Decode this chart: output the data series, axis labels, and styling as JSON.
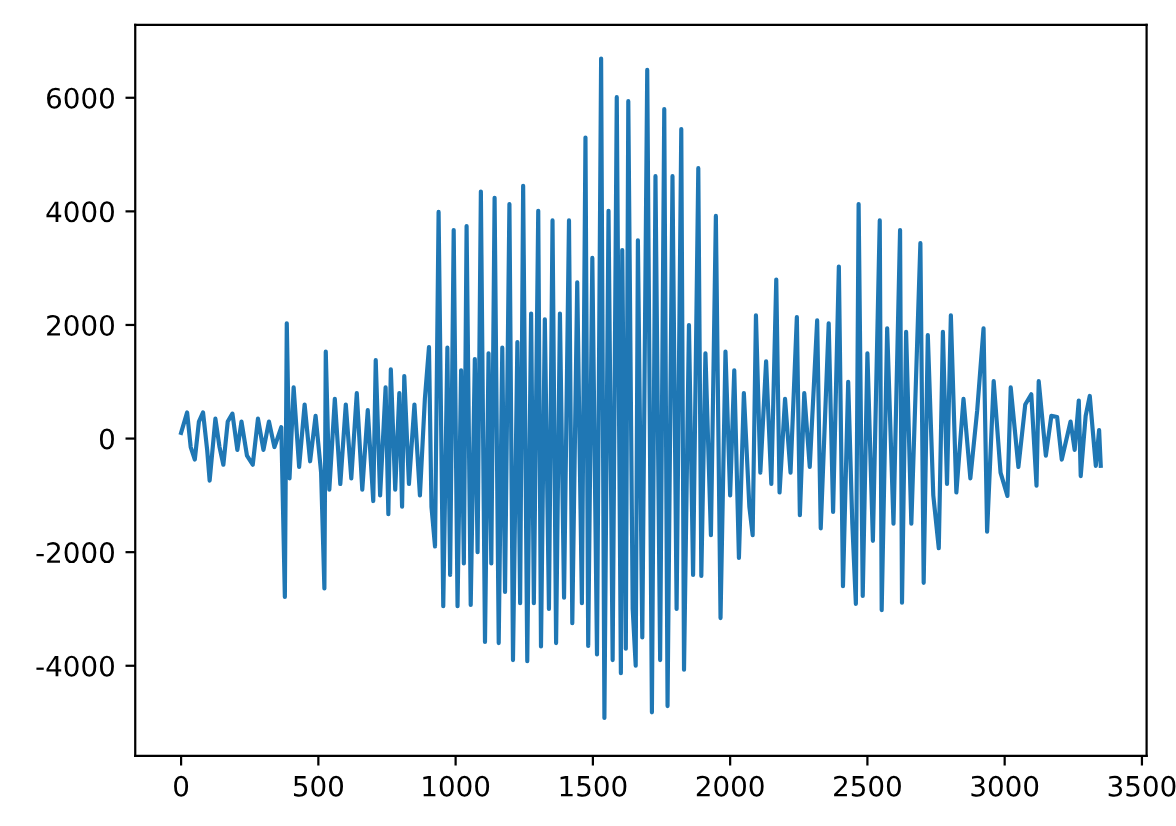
{
  "chart_data": {
    "type": "line",
    "x": [
      0,
      22,
      35,
      50,
      65,
      80,
      95,
      104,
      125,
      140,
      154,
      170,
      187,
      205,
      220,
      240,
      261,
      280,
      300,
      320,
      340,
      365,
      378,
      385,
      395,
      410,
      430,
      450,
      470,
      490,
      510,
      522,
      527,
      540,
      560,
      580,
      600,
      620,
      640,
      660,
      680,
      700,
      709,
      725,
      745,
      755,
      764,
      780,
      795,
      805,
      813,
      830,
      850,
      870,
      888,
      903,
      912,
      925,
      938,
      955,
      970,
      980,
      993,
      1007,
      1020,
      1030,
      1040,
      1055,
      1070,
      1080,
      1092,
      1107,
      1120,
      1130,
      1142,
      1157,
      1170,
      1180,
      1196,
      1209,
      1225,
      1235,
      1246,
      1261,
      1275,
      1285,
      1301,
      1311,
      1325,
      1340,
      1353,
      1366,
      1380,
      1395,
      1413,
      1425,
      1443,
      1460,
      1473,
      1483,
      1498,
      1515,
      1530,
      1542,
      1557,
      1572,
      1587,
      1602,
      1607,
      1620,
      1629,
      1645,
      1656,
      1664,
      1680,
      1698,
      1715,
      1728,
      1745,
      1760,
      1772,
      1790,
      1805,
      1822,
      1832,
      1850,
      1865,
      1884,
      1895,
      1910,
      1930,
      1948,
      1965,
      1983,
      2000,
      2015,
      2032,
      2050,
      2070,
      2082,
      2094,
      2110,
      2131,
      2150,
      2168,
      2180,
      2200,
      2220,
      2243,
      2254,
      2270,
      2290,
      2317,
      2330,
      2359,
      2375,
      2396,
      2411,
      2430,
      2445,
      2458,
      2468,
      2483,
      2500,
      2520,
      2545,
      2552,
      2572,
      2595,
      2619,
      2626,
      2641,
      2660,
      2693,
      2705,
      2720,
      2740,
      2760,
      2775,
      2790,
      2804,
      2824,
      2850,
      2875,
      2900,
      2923,
      2936,
      2960,
      2985,
      3010,
      3022,
      3050,
      3075,
      3097,
      3116,
      3124,
      3150,
      3170,
      3191,
      3208,
      3240,
      3255,
      3270,
      3277,
      3295,
      3310,
      3332,
      3344,
      3350
    ],
    "series": [
      {
        "color": "#1f77b4",
        "values": [
          100,
          460,
          -150,
          -370,
          300,
          460,
          -200,
          -740,
          350,
          -150,
          -460,
          300,
          440,
          -200,
          300,
          -300,
          -460,
          350,
          -200,
          300,
          -150,
          200,
          -2790,
          2030,
          -700,
          900,
          -500,
          600,
          -400,
          400,
          -600,
          -2640,
          1530,
          -900,
          700,
          -800,
          600,
          -700,
          800,
          -900,
          500,
          -1100,
          1380,
          -1000,
          900,
          -1330,
          1220,
          -900,
          800,
          -1200,
          1100,
          -800,
          600,
          -1000,
          700,
          1610,
          -1200,
          -1900,
          3990,
          -2950,
          1600,
          -2400,
          3670,
          -2950,
          1200,
          -2200,
          3740,
          -2930,
          1400,
          -2000,
          4350,
          -3580,
          1500,
          -2200,
          4240,
          -3600,
          1600,
          -2700,
          4130,
          -3900,
          1700,
          -2900,
          4450,
          -3920,
          2200,
          -2900,
          4010,
          -3660,
          2100,
          -3000,
          3840,
          -3600,
          2200,
          -2800,
          3840,
          -3250,
          2750,
          -2900,
          5300,
          -3650,
          3180,
          -3800,
          6690,
          -4920,
          4010,
          -3900,
          6010,
          -4130,
          3320,
          -3700,
          5940,
          -3000,
          -4000,
          3490,
          -3500,
          6490,
          -4820,
          4620,
          -3900,
          5800,
          -4710,
          4620,
          -3000,
          5450,
          -4070,
          2000,
          -2400,
          4760,
          -2420,
          1500,
          -1700,
          3920,
          -3160,
          1530,
          -1000,
          1200,
          -2100,
          800,
          -1200,
          -1700,
          2170,
          -600,
          1360,
          -800,
          2800,
          -950,
          700,
          -600,
          2140,
          -1350,
          800,
          -500,
          2080,
          -1580,
          2030,
          -1290,
          3030,
          -2600,
          1000,
          -1500,
          -2910,
          4130,
          -2770,
          1500,
          -1800,
          3840,
          -3020,
          1940,
          -1500,
          3670,
          -2890,
          1880,
          -1500,
          3440,
          -2540,
          1820,
          -1000,
          -1930,
          1880,
          -800,
          2170,
          -950,
          700,
          -700,
          500,
          1940,
          -1640,
          1010,
          -600,
          -1010,
          900,
          -500,
          600,
          780,
          -830,
          1010,
          -300,
          400,
          380,
          -370,
          300,
          -200,
          670,
          -660,
          400,
          750,
          -480,
          150,
          -480
        ]
      }
    ],
    "xlim": [
      -167,
      3517
    ],
    "ylim": [
      -5585,
      7285
    ],
    "xticks": [
      0,
      500,
      1000,
      1500,
      2000,
      2500,
      3000,
      3500
    ],
    "yticks": [
      -4000,
      -2000,
      0,
      2000,
      4000,
      6000
    ],
    "grid": false,
    "legend": false
  }
}
